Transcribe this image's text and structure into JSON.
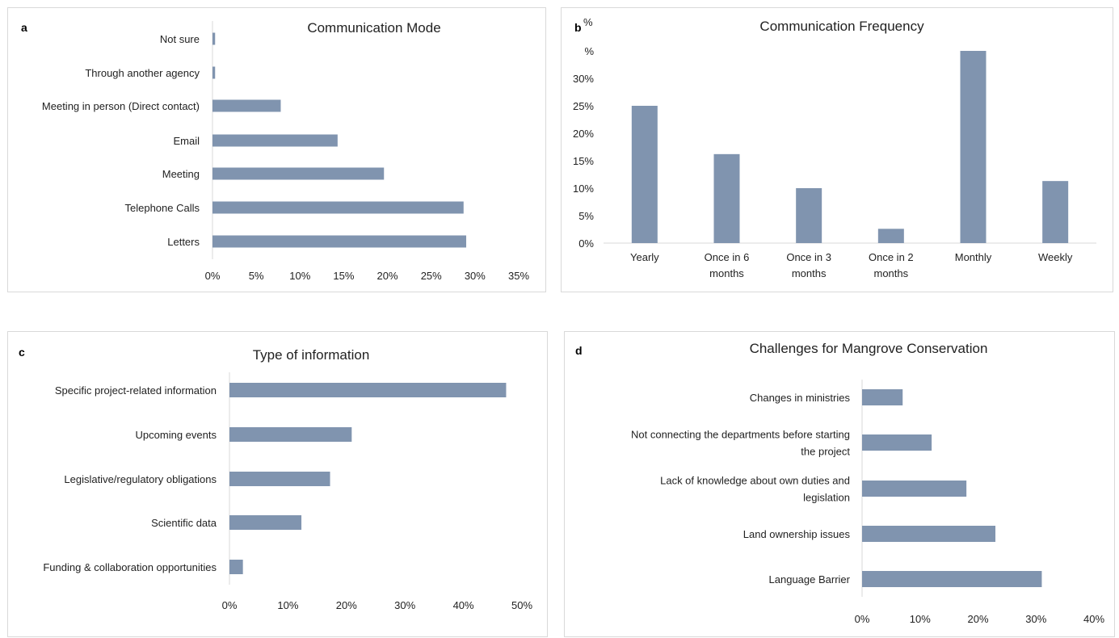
{
  "colors": {
    "bar": "#8094af",
    "axis": "#d9d9d9"
  },
  "chart_data": [
    {
      "id": "a",
      "panel_letter": "a",
      "type": "bar",
      "orientation": "horizontal",
      "title": "Communication Mode",
      "categories": [
        "Not sure",
        "Through another agency",
        "Meeting in person (Direct contact)",
        "Email",
        "Meeting",
        "Telephone Calls",
        "Letters"
      ],
      "values": [
        0.3,
        0.3,
        7.8,
        14.3,
        19.6,
        28.7,
        29.0
      ],
      "ticks": [
        "0%",
        "5%",
        "10%",
        "15%",
        "20%",
        "25%",
        "30%",
        "35%"
      ],
      "xlim": [
        0,
        35
      ],
      "grid": false,
      "legend": "none"
    },
    {
      "id": "b",
      "panel_letter": "b",
      "type": "bar",
      "orientation": "vertical",
      "title": "Communication Frequency",
      "ylabel": "%",
      "categories": [
        "Yearly",
        "Once in 6 months",
        "Once in 3 months",
        "Once in 2 months",
        "Monthly",
        "Weekly"
      ],
      "values": [
        25.0,
        16.2,
        10.0,
        2.6,
        35.0,
        11.3
      ],
      "ticks": [
        "0%",
        "5%",
        "10%",
        "15%",
        "20%",
        "25%",
        "30%",
        "%"
      ],
      "ylim": [
        0,
        35
      ],
      "grid": false,
      "legend": "none"
    },
    {
      "id": "c",
      "panel_letter": "c",
      "type": "bar",
      "orientation": "horizontal",
      "title": "Type of information",
      "categories": [
        "Specific project-related information",
        "Upcoming events",
        "Legislative/regulatory obligations",
        "Scientific data",
        "Funding & collaboration opportunities"
      ],
      "values": [
        47.3,
        20.9,
        17.2,
        12.3,
        2.3
      ],
      "ticks": [
        "0%",
        "10%",
        "20%",
        "30%",
        "40%",
        "50%"
      ],
      "xlim": [
        0,
        50
      ],
      "grid": false,
      "legend": "none"
    },
    {
      "id": "d",
      "panel_letter": "d",
      "type": "bar",
      "orientation": "horizontal",
      "title": "Challenges for Mangrove Conservation",
      "categories": [
        "Changes in ministries",
        "Not connecting the departments before starting the project",
        "Lack of knowledge about own duties and legislation",
        "Land ownership issues",
        "Language Barrier"
      ],
      "values": [
        7.0,
        12.0,
        18.0,
        23.0,
        31.0
      ],
      "ticks": [
        "0%",
        "10%",
        "20%",
        "30%",
        "40%"
      ],
      "xlim": [
        0,
        40
      ],
      "grid": false,
      "legend": "none"
    }
  ]
}
